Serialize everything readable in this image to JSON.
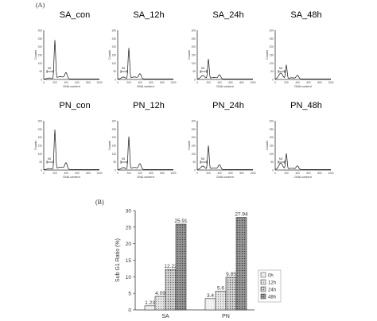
{
  "panel_a_label": "(A)",
  "panel_b_label": "(B)",
  "histograms": {
    "x_label": "DNA content",
    "y_label": "Counts",
    "y_ticks": [
      "0",
      "50",
      "100",
      "150",
      "200",
      "250",
      "300"
    ],
    "x_ticks": [
      "0",
      "200",
      "400",
      "600",
      "800",
      "1000"
    ],
    "gate_label": "M1",
    "panels": [
      {
        "title": "SA_con",
        "g1_peak": 0.78,
        "g2_peak": 0.12,
        "sub_g1": 0.02
      },
      {
        "title": "SA_12h",
        "g1_peak": 0.62,
        "g2_peak": 0.1,
        "sub_g1": 0.04
      },
      {
        "title": "SA_24h",
        "g1_peak": 0.4,
        "g2_peak": 0.08,
        "sub_g1": 0.07
      },
      {
        "title": "SA_48h",
        "g1_peak": 0.28,
        "g2_peak": 0.07,
        "sub_g1": 0.12
      },
      {
        "title": "PN_con",
        "g1_peak": 0.8,
        "g2_peak": 0.13,
        "sub_g1": 0.02
      },
      {
        "title": "PN_12h",
        "g1_peak": 0.66,
        "g2_peak": 0.11,
        "sub_g1": 0.04
      },
      {
        "title": "PN_24h",
        "g1_peak": 0.48,
        "g2_peak": 0.09,
        "sub_g1": 0.07
      },
      {
        "title": "PN_48h",
        "g1_peak": 0.32,
        "g2_peak": 0.07,
        "sub_g1": 0.13
      }
    ]
  },
  "chart_data": {
    "type": "bar",
    "categories": [
      "SA",
      "PN"
    ],
    "ylabel": "Sub G1 Ratio (%)",
    "ylim": [
      0,
      30
    ],
    "yticks": [
      0,
      5,
      10,
      15,
      20,
      25,
      30
    ],
    "series": [
      {
        "name": "0h",
        "values": [
          1.23,
          3.4
        ]
      },
      {
        "name": "12h",
        "values": [
          4.09,
          5.6
        ]
      },
      {
        "name": "24h",
        "values": [
          12.22,
          9.85
        ]
      },
      {
        "name": "48h",
        "values": [
          25.91,
          27.94
        ]
      }
    ],
    "data_labels": [
      [
        "1.23",
        "4.09",
        "12.22",
        "25.91"
      ],
      [
        "3.4",
        "5.6",
        "9.85",
        "27.94"
      ]
    ],
    "legend": "right"
  }
}
